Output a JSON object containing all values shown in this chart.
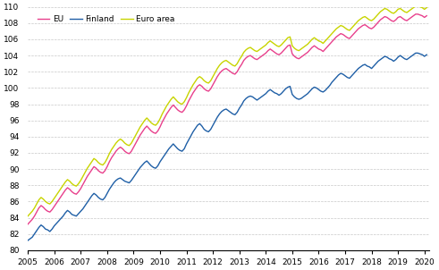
{
  "ylim": [
    80,
    110
  ],
  "yticks": [
    80,
    82,
    84,
    86,
    88,
    90,
    92,
    94,
    96,
    98,
    100,
    102,
    104,
    106,
    108,
    110
  ],
  "eu_color": "#e8408c",
  "finland_color": "#1f5fa6",
  "euroarea_color": "#c8d400",
  "legend_labels": [
    "EU",
    "Finland",
    "Euro area"
  ],
  "line_width": 1.0,
  "background_color": "#ffffff",
  "grid_color": "#c8c8c8",
  "finland": [
    81.2,
    81.4,
    81.6,
    82.0,
    82.4,
    82.8,
    83.1,
    82.9,
    82.6,
    82.5,
    82.3,
    82.6,
    83.0,
    83.3,
    83.6,
    83.9,
    84.2,
    84.6,
    84.9,
    84.7,
    84.4,
    84.3,
    84.2,
    84.5,
    84.8,
    85.1,
    85.5,
    85.9,
    86.3,
    86.7,
    87.0,
    86.8,
    86.5,
    86.3,
    86.2,
    86.5,
    87.0,
    87.5,
    87.9,
    88.3,
    88.6,
    88.8,
    88.9,
    88.7,
    88.5,
    88.4,
    88.3,
    88.6,
    89.0,
    89.4,
    89.8,
    90.2,
    90.5,
    90.8,
    91.0,
    90.7,
    90.4,
    90.2,
    90.1,
    90.4,
    90.9,
    91.3,
    91.7,
    92.1,
    92.5,
    92.8,
    93.1,
    92.8,
    92.5,
    92.3,
    92.2,
    92.5,
    93.1,
    93.6,
    94.1,
    94.6,
    95.0,
    95.4,
    95.6,
    95.3,
    94.9,
    94.7,
    94.6,
    94.9,
    95.4,
    95.9,
    96.4,
    96.8,
    97.1,
    97.3,
    97.4,
    97.2,
    97.0,
    96.8,
    96.7,
    97.0,
    97.5,
    97.9,
    98.4,
    98.7,
    98.9,
    99.0,
    98.9,
    98.7,
    98.5,
    98.7,
    98.9,
    99.1,
    99.3,
    99.6,
    99.8,
    99.6,
    99.4,
    99.3,
    99.1,
    99.3,
    99.6,
    99.9,
    100.1,
    100.2,
    99.2,
    98.9,
    98.7,
    98.6,
    98.7,
    98.9,
    99.1,
    99.3,
    99.6,
    99.9,
    100.1,
    100.0,
    99.8,
    99.6,
    99.5,
    99.7,
    100.0,
    100.3,
    100.7,
    101.0,
    101.3,
    101.6,
    101.8,
    101.7,
    101.5,
    101.3,
    101.2,
    101.5,
    101.8,
    102.1,
    102.4,
    102.6,
    102.8,
    102.9,
    102.7,
    102.6,
    102.4,
    102.7,
    103.0,
    103.3,
    103.5,
    103.7,
    103.9,
    103.8,
    103.6,
    103.5,
    103.3,
    103.5,
    103.8,
    104.0,
    103.8,
    103.6,
    103.5,
    103.7,
    103.9,
    104.1,
    104.3,
    104.3,
    104.2,
    104.1,
    103.9,
    104.1
  ],
  "eu": [
    83.2,
    83.5,
    83.8,
    84.2,
    84.7,
    85.2,
    85.5,
    85.3,
    85.0,
    84.8,
    84.7,
    85.0,
    85.4,
    85.8,
    86.2,
    86.6,
    87.0,
    87.4,
    87.7,
    87.5,
    87.2,
    87.0,
    86.9,
    87.2,
    87.6,
    88.1,
    88.6,
    89.1,
    89.5,
    89.9,
    90.3,
    90.1,
    89.8,
    89.6,
    89.5,
    89.8,
    90.3,
    90.9,
    91.4,
    91.8,
    92.2,
    92.5,
    92.7,
    92.5,
    92.2,
    92.0,
    91.9,
    92.2,
    92.7,
    93.2,
    93.7,
    94.2,
    94.6,
    95.0,
    95.3,
    95.0,
    94.7,
    94.5,
    94.4,
    94.7,
    95.2,
    95.8,
    96.3,
    96.8,
    97.2,
    97.6,
    97.9,
    97.6,
    97.3,
    97.1,
    97.0,
    97.3,
    97.8,
    98.4,
    98.9,
    99.4,
    99.8,
    100.2,
    100.4,
    100.2,
    99.9,
    99.7,
    99.6,
    99.9,
    100.4,
    100.9,
    101.4,
    101.8,
    102.1,
    102.3,
    102.4,
    102.2,
    102.0,
    101.8,
    101.7,
    102.0,
    102.5,
    102.9,
    103.4,
    103.7,
    103.9,
    104.0,
    103.8,
    103.6,
    103.5,
    103.7,
    103.9,
    104.1,
    104.3,
    104.6,
    104.8,
    104.6,
    104.4,
    104.2,
    104.1,
    104.3,
    104.6,
    104.9,
    105.2,
    105.3,
    104.2,
    103.9,
    103.7,
    103.6,
    103.8,
    104.0,
    104.2,
    104.4,
    104.7,
    105.0,
    105.2,
    105.0,
    104.8,
    104.7,
    104.5,
    104.8,
    105.1,
    105.4,
    105.7,
    106.0,
    106.3,
    106.5,
    106.7,
    106.6,
    106.4,
    106.2,
    106.1,
    106.4,
    106.7,
    107.0,
    107.3,
    107.5,
    107.7,
    107.8,
    107.6,
    107.4,
    107.3,
    107.5,
    107.8,
    108.1,
    108.4,
    108.6,
    108.8,
    108.7,
    108.5,
    108.3,
    108.2,
    108.4,
    108.7,
    108.8,
    108.6,
    108.4,
    108.3,
    108.5,
    108.7,
    108.9,
    109.1,
    109.1,
    109.0,
    108.9,
    108.7,
    108.9
  ],
  "euroarea": [
    84.2,
    84.5,
    84.8,
    85.2,
    85.7,
    86.2,
    86.5,
    86.3,
    86.0,
    85.8,
    85.7,
    86.0,
    86.4,
    86.8,
    87.2,
    87.6,
    88.0,
    88.4,
    88.7,
    88.5,
    88.2,
    88.0,
    87.9,
    88.2,
    88.6,
    89.1,
    89.6,
    90.1,
    90.5,
    90.9,
    91.3,
    91.1,
    90.8,
    90.6,
    90.5,
    90.8,
    91.3,
    91.9,
    92.4,
    92.8,
    93.2,
    93.5,
    93.7,
    93.5,
    93.2,
    93.0,
    92.9,
    93.2,
    93.7,
    94.2,
    94.7,
    95.2,
    95.6,
    96.0,
    96.3,
    96.0,
    95.7,
    95.5,
    95.4,
    95.7,
    96.2,
    96.8,
    97.3,
    97.8,
    98.2,
    98.6,
    98.9,
    98.6,
    98.3,
    98.1,
    98.0,
    98.3,
    98.8,
    99.4,
    99.9,
    100.4,
    100.8,
    101.2,
    101.4,
    101.2,
    100.9,
    100.7,
    100.6,
    100.9,
    101.4,
    101.9,
    102.4,
    102.8,
    103.1,
    103.3,
    103.4,
    103.2,
    103.0,
    102.8,
    102.7,
    103.0,
    103.5,
    103.9,
    104.4,
    104.7,
    104.9,
    105.0,
    104.8,
    104.6,
    104.5,
    104.7,
    104.9,
    105.1,
    105.3,
    105.6,
    105.8,
    105.6,
    105.4,
    105.2,
    105.1,
    105.3,
    105.6,
    105.9,
    106.2,
    106.3,
    105.2,
    104.9,
    104.7,
    104.6,
    104.8,
    105.0,
    105.2,
    105.4,
    105.7,
    106.0,
    106.2,
    106.0,
    105.8,
    105.7,
    105.5,
    105.8,
    106.1,
    106.4,
    106.7,
    107.0,
    107.3,
    107.5,
    107.7,
    107.6,
    107.4,
    107.2,
    107.1,
    107.4,
    107.7,
    108.0,
    108.3,
    108.5,
    108.7,
    108.8,
    108.6,
    108.4,
    108.3,
    108.5,
    108.8,
    109.1,
    109.4,
    109.6,
    109.8,
    109.7,
    109.5,
    109.3,
    109.2,
    109.4,
    109.7,
    109.8,
    109.6,
    109.4,
    109.3,
    109.5,
    109.7,
    109.9,
    110.1,
    110.1,
    110.0,
    109.9,
    109.7,
    109.9
  ]
}
